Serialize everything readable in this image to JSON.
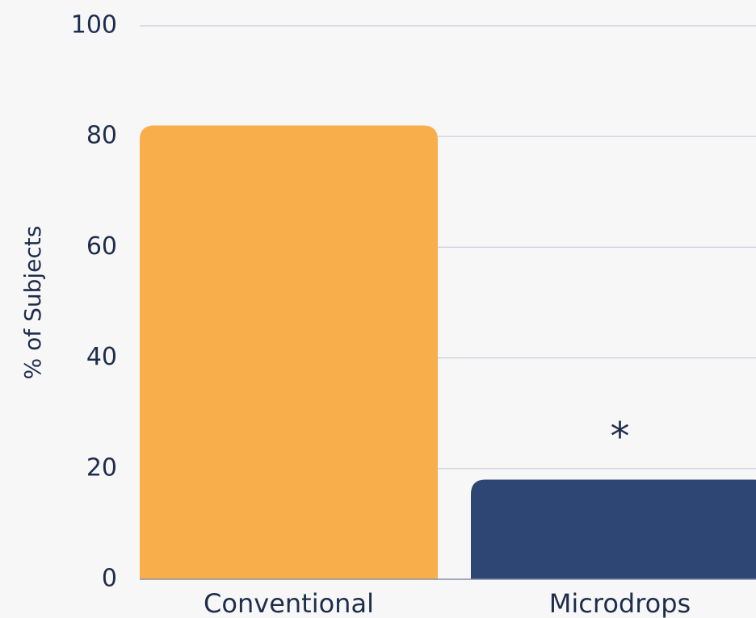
{
  "chart_data": {
    "type": "bar",
    "y_label": "% of Subjects",
    "categories": [
      "Conventional",
      "Microdrops"
    ],
    "values": [
      82,
      18
    ],
    "colors": [
      "#f8ae4b",
      "#2e4674"
    ],
    "annotation": "*",
    "ylim": [
      0,
      100
    ],
    "yticks": [
      0,
      20,
      40,
      60,
      80,
      100
    ],
    "grid": true
  }
}
